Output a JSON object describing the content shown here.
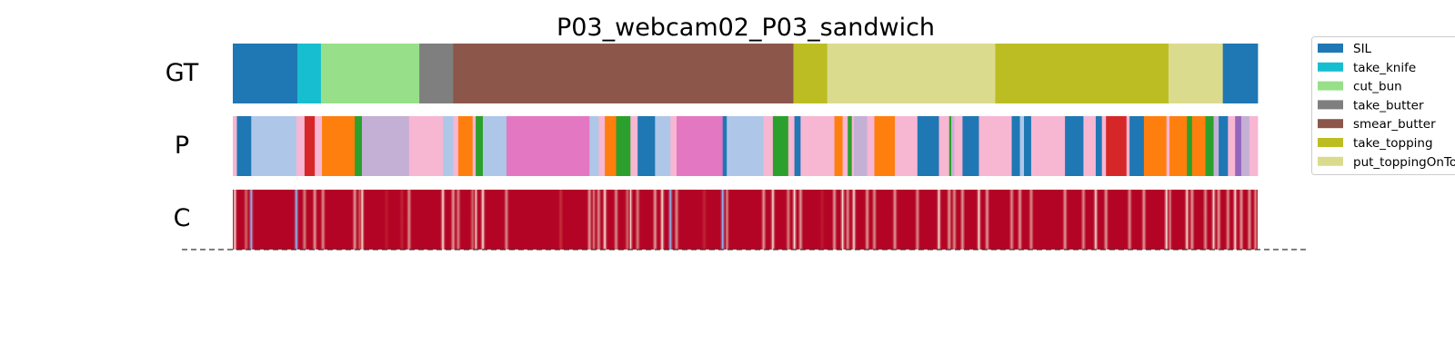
{
  "chart_data": {
    "type": "segmentation",
    "title": "P03_webcam02_P03_sandwich",
    "x_range": [
      0,
      1
    ],
    "rows": [
      {
        "label": "GT",
        "segments": [
          {
            "start": 0.0,
            "end": 0.063,
            "action": "SIL",
            "color": "#1f77b4"
          },
          {
            "start": 0.063,
            "end": 0.086,
            "action": "take_knife",
            "color": "#17becf"
          },
          {
            "start": 0.086,
            "end": 0.182,
            "action": "cut_bun",
            "color": "#98df8a"
          },
          {
            "start": 0.182,
            "end": 0.215,
            "action": "take_butter",
            "color": "#7f7f7f"
          },
          {
            "start": 0.215,
            "end": 0.547,
            "action": "smear_butter",
            "color": "#8c564b"
          },
          {
            "start": 0.547,
            "end": 0.58,
            "action": "take_topping",
            "color": "#bcbd22"
          },
          {
            "start": 0.58,
            "end": 0.744,
            "action": "put_toppingOnTop",
            "color": "#dbdb8d"
          },
          {
            "start": 0.744,
            "end": 0.913,
            "action": "take_topping",
            "color": "#bcbd22"
          },
          {
            "start": 0.913,
            "end": 0.966,
            "action": "put_toppingOnTop",
            "color": "#dbdb8d"
          },
          {
            "start": 0.966,
            "end": 1.0,
            "action": "SIL",
            "color": "#1f77b4"
          }
        ]
      },
      {
        "label": "P",
        "segments": [
          {
            "start": 0.0,
            "end": 0.004,
            "color": "#f7b6d2"
          },
          {
            "start": 0.004,
            "end": 0.018,
            "color": "#1f77b4"
          },
          {
            "start": 0.018,
            "end": 0.062,
            "color": "#aec7e8"
          },
          {
            "start": 0.062,
            "end": 0.07,
            "color": "#f7b6d2"
          },
          {
            "start": 0.07,
            "end": 0.08,
            "color": "#d62728"
          },
          {
            "start": 0.08,
            "end": 0.087,
            "color": "#f7b6d2"
          },
          {
            "start": 0.087,
            "end": 0.119,
            "color": "#ff7f0e"
          },
          {
            "start": 0.119,
            "end": 0.126,
            "color": "#2ca02c"
          },
          {
            "start": 0.126,
            "end": 0.172,
            "color": "#c5b0d5"
          },
          {
            "start": 0.172,
            "end": 0.205,
            "color": "#f7b6d2"
          },
          {
            "start": 0.205,
            "end": 0.215,
            "color": "#aec7e8"
          },
          {
            "start": 0.215,
            "end": 0.22,
            "color": "#f7b6d2"
          },
          {
            "start": 0.22,
            "end": 0.234,
            "color": "#ff7f0e"
          },
          {
            "start": 0.234,
            "end": 0.237,
            "color": "#f7b6d2"
          },
          {
            "start": 0.237,
            "end": 0.244,
            "color": "#2ca02c"
          },
          {
            "start": 0.244,
            "end": 0.267,
            "color": "#aec7e8"
          },
          {
            "start": 0.267,
            "end": 0.348,
            "color": "#e377c2"
          },
          {
            "start": 0.348,
            "end": 0.357,
            "color": "#aec7e8"
          },
          {
            "start": 0.357,
            "end": 0.363,
            "color": "#f7b6d2"
          },
          {
            "start": 0.363,
            "end": 0.374,
            "color": "#ff7f0e"
          },
          {
            "start": 0.374,
            "end": 0.388,
            "color": "#2ca02c"
          },
          {
            "start": 0.388,
            "end": 0.395,
            "color": "#f7b6d2"
          },
          {
            "start": 0.395,
            "end": 0.412,
            "color": "#1f77b4"
          },
          {
            "start": 0.412,
            "end": 0.427,
            "color": "#aec7e8"
          },
          {
            "start": 0.427,
            "end": 0.433,
            "color": "#f7b6d2"
          },
          {
            "start": 0.433,
            "end": 0.478,
            "color": "#e377c2"
          },
          {
            "start": 0.478,
            "end": 0.482,
            "color": "#1f77b4"
          },
          {
            "start": 0.482,
            "end": 0.518,
            "color": "#aec7e8"
          },
          {
            "start": 0.518,
            "end": 0.527,
            "color": "#f7b6d2"
          },
          {
            "start": 0.527,
            "end": 0.542,
            "color": "#2ca02c"
          },
          {
            "start": 0.542,
            "end": 0.548,
            "color": "#f7b6d2"
          },
          {
            "start": 0.548,
            "end": 0.554,
            "color": "#1f77b4"
          },
          {
            "start": 0.554,
            "end": 0.587,
            "color": "#f7b6d2"
          },
          {
            "start": 0.587,
            "end": 0.595,
            "color": "#ff7f0e"
          },
          {
            "start": 0.595,
            "end": 0.6,
            "color": "#f7b6d2"
          },
          {
            "start": 0.6,
            "end": 0.604,
            "color": "#2ca02c"
          },
          {
            "start": 0.604,
            "end": 0.606,
            "color": "#f7b6d2"
          },
          {
            "start": 0.606,
            "end": 0.619,
            "color": "#c5b0d5"
          },
          {
            "start": 0.619,
            "end": 0.626,
            "color": "#f7b6d2"
          },
          {
            "start": 0.626,
            "end": 0.646,
            "color": "#ff7f0e"
          },
          {
            "start": 0.646,
            "end": 0.668,
            "color": "#f7b6d2"
          },
          {
            "start": 0.668,
            "end": 0.689,
            "color": "#1f77b4"
          },
          {
            "start": 0.689,
            "end": 0.699,
            "color": "#f7b6d2"
          },
          {
            "start": 0.699,
            "end": 0.701,
            "color": "#2ca02c"
          },
          {
            "start": 0.701,
            "end": 0.704,
            "color": "#c5b0d5"
          },
          {
            "start": 0.704,
            "end": 0.712,
            "color": "#f7b6d2"
          },
          {
            "start": 0.712,
            "end": 0.728,
            "color": "#1f77b4"
          },
          {
            "start": 0.728,
            "end": 0.736,
            "color": "#f7b6d2"
          },
          {
            "start": 0.736,
            "end": 0.76,
            "color": "#f7b6d2"
          },
          {
            "start": 0.76,
            "end": 0.768,
            "color": "#1f77b4"
          },
          {
            "start": 0.768,
            "end": 0.772,
            "color": "#aec7e8"
          },
          {
            "start": 0.772,
            "end": 0.779,
            "color": "#1f77b4"
          },
          {
            "start": 0.779,
            "end": 0.812,
            "color": "#f7b6d2"
          },
          {
            "start": 0.812,
            "end": 0.83,
            "color": "#1f77b4"
          },
          {
            "start": 0.83,
            "end": 0.842,
            "color": "#f7b6d2"
          },
          {
            "start": 0.842,
            "end": 0.848,
            "color": "#1f77b4"
          },
          {
            "start": 0.848,
            "end": 0.852,
            "color": "#f7b6d2"
          },
          {
            "start": 0.852,
            "end": 0.872,
            "color": "#d62728"
          },
          {
            "start": 0.872,
            "end": 0.875,
            "color": "#f7b6d2"
          },
          {
            "start": 0.875,
            "end": 0.889,
            "color": "#1f77b4"
          },
          {
            "start": 0.889,
            "end": 0.911,
            "color": "#ff7f0e"
          },
          {
            "start": 0.911,
            "end": 0.914,
            "color": "#f7b6d2"
          },
          {
            "start": 0.914,
            "end": 0.931,
            "color": "#ff7f0e"
          },
          {
            "start": 0.931,
            "end": 0.936,
            "color": "#2ca02c"
          },
          {
            "start": 0.936,
            "end": 0.949,
            "color": "#ff7f0e"
          },
          {
            "start": 0.949,
            "end": 0.957,
            "color": "#2ca02c"
          },
          {
            "start": 0.957,
            "end": 0.962,
            "color": "#c5b0d5"
          },
          {
            "start": 0.962,
            "end": 0.971,
            "color": "#1f77b4"
          },
          {
            "start": 0.971,
            "end": 0.978,
            "color": "#f7b6d2"
          },
          {
            "start": 0.978,
            "end": 0.984,
            "color": "#9467bd"
          },
          {
            "start": 0.984,
            "end": 0.992,
            "color": "#c5b0d5"
          },
          {
            "start": 0.992,
            "end": 1.0,
            "color": "#f7b6d2"
          }
        ]
      },
      {
        "label": "C",
        "colormap": "coolwarm",
        "base_color": "#b40426",
        "dips": [
          {
            "x": 0.002,
            "v": 0.25
          },
          {
            "x": 0.013,
            "v": 0.5
          },
          {
            "x": 0.018,
            "v": 0.15
          },
          {
            "x": 0.062,
            "v": 0.1
          },
          {
            "x": 0.07,
            "v": 0.4
          },
          {
            "x": 0.08,
            "v": 0.3
          },
          {
            "x": 0.088,
            "v": 0.35
          },
          {
            "x": 0.119,
            "v": 0.3
          },
          {
            "x": 0.124,
            "v": 0.55
          },
          {
            "x": 0.126,
            "v": 0.2
          },
          {
            "x": 0.15,
            "v": 0.7
          },
          {
            "x": 0.165,
            "v": 0.75
          },
          {
            "x": 0.172,
            "v": 0.35
          },
          {
            "x": 0.205,
            "v": 0.2
          },
          {
            "x": 0.215,
            "v": 0.3
          },
          {
            "x": 0.22,
            "v": 0.4
          },
          {
            "x": 0.234,
            "v": 0.5
          },
          {
            "x": 0.237,
            "v": 0.25
          },
          {
            "x": 0.244,
            "v": 0.2
          },
          {
            "x": 0.267,
            "v": 0.35
          },
          {
            "x": 0.32,
            "v": 0.8
          },
          {
            "x": 0.348,
            "v": 0.3
          },
          {
            "x": 0.352,
            "v": 0.4
          },
          {
            "x": 0.357,
            "v": 0.35
          },
          {
            "x": 0.363,
            "v": 0.2
          },
          {
            "x": 0.374,
            "v": 0.35
          },
          {
            "x": 0.385,
            "v": 0.5
          },
          {
            "x": 0.388,
            "v": 0.25
          },
          {
            "x": 0.395,
            "v": 0.4
          },
          {
            "x": 0.412,
            "v": 0.3
          },
          {
            "x": 0.419,
            "v": 0.2
          },
          {
            "x": 0.427,
            "v": 0.15
          },
          {
            "x": 0.433,
            "v": 0.35
          },
          {
            "x": 0.46,
            "v": 0.75
          },
          {
            "x": 0.478,
            "v": 0.15
          },
          {
            "x": 0.482,
            "v": 0.35
          },
          {
            "x": 0.518,
            "v": 0.3
          },
          {
            "x": 0.527,
            "v": 0.25
          },
          {
            "x": 0.542,
            "v": 0.4
          },
          {
            "x": 0.548,
            "v": 0.2
          },
          {
            "x": 0.554,
            "v": 0.3
          },
          {
            "x": 0.575,
            "v": 0.7
          },
          {
            "x": 0.587,
            "v": 0.3
          },
          {
            "x": 0.595,
            "v": 0.25
          },
          {
            "x": 0.6,
            "v": 0.35
          },
          {
            "x": 0.606,
            "v": 0.2
          },
          {
            "x": 0.619,
            "v": 0.3
          },
          {
            "x": 0.626,
            "v": 0.35
          },
          {
            "x": 0.646,
            "v": 0.3
          },
          {
            "x": 0.668,
            "v": 0.35
          },
          {
            "x": 0.689,
            "v": 0.25
          },
          {
            "x": 0.699,
            "v": 0.3
          },
          {
            "x": 0.704,
            "v": 0.35
          },
          {
            "x": 0.712,
            "v": 0.3
          },
          {
            "x": 0.728,
            "v": 0.25
          },
          {
            "x": 0.736,
            "v": 0.3
          },
          {
            "x": 0.76,
            "v": 0.35
          },
          {
            "x": 0.768,
            "v": 0.3
          },
          {
            "x": 0.779,
            "v": 0.35
          },
          {
            "x": 0.812,
            "v": 0.3
          },
          {
            "x": 0.83,
            "v": 0.35
          },
          {
            "x": 0.842,
            "v": 0.25
          },
          {
            "x": 0.852,
            "v": 0.3
          },
          {
            "x": 0.875,
            "v": 0.35
          },
          {
            "x": 0.889,
            "v": 0.3
          },
          {
            "x": 0.911,
            "v": 0.2
          },
          {
            "x": 0.914,
            "v": 0.3
          },
          {
            "x": 0.931,
            "v": 0.25
          },
          {
            "x": 0.936,
            "v": 0.3
          },
          {
            "x": 0.949,
            "v": 0.35
          },
          {
            "x": 0.957,
            "v": 0.25
          },
          {
            "x": 0.962,
            "v": 0.3
          },
          {
            "x": 0.971,
            "v": 0.35
          },
          {
            "x": 0.978,
            "v": 0.25
          },
          {
            "x": 0.984,
            "v": 0.3
          },
          {
            "x": 0.992,
            "v": 0.3
          },
          {
            "x": 0.998,
            "v": 0.35
          }
        ]
      }
    ],
    "legend": {
      "placement": "top-right",
      "entries": [
        {
          "label": "SIL",
          "color": "#1f77b4"
        },
        {
          "label": "take_knife",
          "color": "#17becf"
        },
        {
          "label": "cut_bun",
          "color": "#98df8a"
        },
        {
          "label": "take_butter",
          "color": "#7f7f7f"
        },
        {
          "label": "smear_butter",
          "color": "#8c564b"
        },
        {
          "label": "take_topping",
          "color": "#bcbd22"
        },
        {
          "label": "put_toppingOnTop",
          "color": "#dbdb8d"
        }
      ]
    },
    "baseline": {
      "style": "dashed",
      "color": "#333333"
    }
  }
}
